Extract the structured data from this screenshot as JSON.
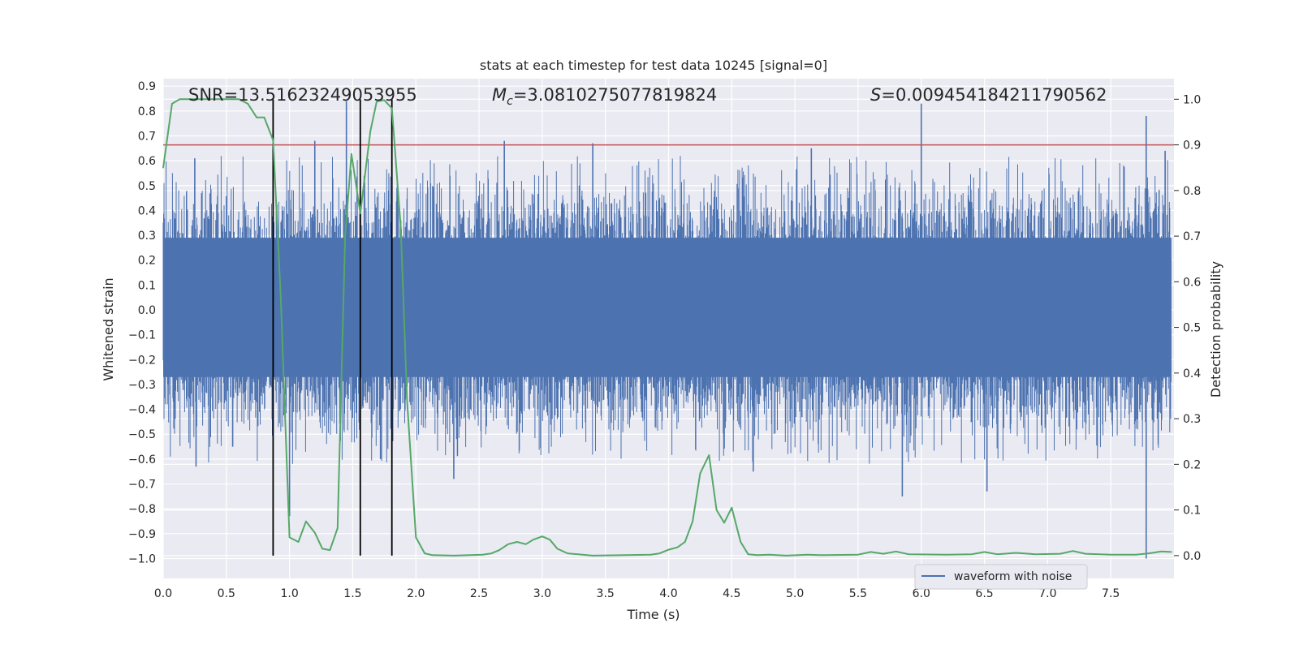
{
  "chart_data": {
    "type": "line",
    "title": "stats at each timestep for test data 10245 [signal=0]",
    "xlabel": "Time (s)",
    "ylabel": "Whitened strain",
    "ylabel_right": "Detection probability",
    "xlim": [
      0.0,
      8.0
    ],
    "ylim": [
      -1.08,
      0.93
    ],
    "ylim_right": [
      -0.05,
      1.045
    ],
    "x_ticks": [
      "0.0",
      "0.5",
      "1.0",
      "1.5",
      "2.0",
      "2.5",
      "3.0",
      "3.5",
      "4.0",
      "4.5",
      "5.0",
      "5.5",
      "6.0",
      "6.5",
      "7.0",
      "7.5"
    ],
    "y_ticks": [
      "0.9",
      "0.8",
      "0.7",
      "0.6",
      "0.5",
      "0.4",
      "0.3",
      "0.2",
      "0.1",
      "0.0",
      "-0.1",
      "-0.2",
      "-0.3",
      "-0.4",
      "-0.5",
      "-0.6",
      "-0.7",
      "-0.8",
      "-0.9",
      "-1.0"
    ],
    "y_ticks_right": [
      "1.0",
      "0.9",
      "0.8",
      "0.7",
      "0.6",
      "0.5",
      "0.4",
      "0.3",
      "0.2",
      "0.1",
      "0.0"
    ],
    "annotations": {
      "snr": "SNR=13.51623249053955",
      "mc_symbol": "M",
      "mc_sub": "c",
      "mc_value": "=3.0810275077819824",
      "s_symbol": "S",
      "s_value": "=0.009454184211790562"
    },
    "legend": {
      "label": "waveform with noise",
      "location": "lower right"
    },
    "threshold_right": 0.9,
    "vertical_lines_x": [
      0.87,
      1.56,
      1.81
    ],
    "series": [
      {
        "name": "waveform with noise",
        "axis": "left",
        "color": "#4c72b0",
        "style": "dense noise band",
        "envelope": {
          "core_low": -0.27,
          "core_high": 0.29,
          "typical_peak": 0.55,
          "typical_trough": -0.55
        },
        "extreme_spikes": [
          {
            "x": 0.25,
            "y": 0.61
          },
          {
            "x": 0.26,
            "y": -0.63
          },
          {
            "x": 0.55,
            "y": -0.55
          },
          {
            "x": 1.0,
            "y": -0.83
          },
          {
            "x": 1.2,
            "y": 0.68
          },
          {
            "x": 1.45,
            "y": 0.84
          },
          {
            "x": 1.72,
            "y": -0.6
          },
          {
            "x": 2.3,
            "y": -0.68
          },
          {
            "x": 2.7,
            "y": 0.68
          },
          {
            "x": 3.4,
            "y": 0.67
          },
          {
            "x": 4.67,
            "y": -0.65
          },
          {
            "x": 5.13,
            "y": 0.65
          },
          {
            "x": 6.0,
            "y": 0.83
          },
          {
            "x": 5.85,
            "y": -0.75
          },
          {
            "x": 6.52,
            "y": -0.73
          },
          {
            "x": 7.78,
            "y": 0.78
          },
          {
            "x": 7.78,
            "y": -1.0
          },
          {
            "x": 7.93,
            "y": 0.64
          }
        ]
      },
      {
        "name": "detection probability",
        "axis": "right",
        "color": "#55a868",
        "points": [
          [
            0.0,
            0.85
          ],
          [
            0.07,
            0.99
          ],
          [
            0.13,
            1.0
          ],
          [
            0.2,
            1.0
          ],
          [
            0.33,
            1.0
          ],
          [
            0.46,
            1.0
          ],
          [
            0.6,
            1.0
          ],
          [
            0.67,
            0.99
          ],
          [
            0.74,
            0.96
          ],
          [
            0.8,
            0.96
          ],
          [
            0.87,
            0.91
          ],
          [
            0.93,
            0.57
          ],
          [
            1.0,
            0.04
          ],
          [
            1.07,
            0.03
          ],
          [
            1.13,
            0.075
          ],
          [
            1.2,
            0.05
          ],
          [
            1.26,
            0.015
          ],
          [
            1.32,
            0.012
          ],
          [
            1.38,
            0.06
          ],
          [
            1.44,
            0.7
          ],
          [
            1.49,
            0.88
          ],
          [
            1.56,
            0.75
          ],
          [
            1.6,
            0.84
          ],
          [
            1.64,
            0.93
          ],
          [
            1.69,
            0.995
          ],
          [
            1.75,
            0.998
          ],
          [
            1.81,
            0.98
          ],
          [
            1.88,
            0.72
          ],
          [
            1.93,
            0.34
          ],
          [
            2.0,
            0.04
          ],
          [
            2.07,
            0.005
          ],
          [
            2.13,
            0.001
          ],
          [
            2.3,
            0.0
          ],
          [
            2.53,
            0.002
          ],
          [
            2.6,
            0.005
          ],
          [
            2.66,
            0.012
          ],
          [
            2.73,
            0.025
          ],
          [
            2.8,
            0.03
          ],
          [
            2.87,
            0.025
          ],
          [
            2.93,
            0.035
          ],
          [
            3.0,
            0.042
          ],
          [
            3.06,
            0.035
          ],
          [
            3.12,
            0.015
          ],
          [
            3.2,
            0.005
          ],
          [
            3.4,
            0.0
          ],
          [
            3.86,
            0.002
          ],
          [
            3.93,
            0.005
          ],
          [
            4.0,
            0.013
          ],
          [
            4.07,
            0.018
          ],
          [
            4.13,
            0.03
          ],
          [
            4.19,
            0.075
          ],
          [
            4.25,
            0.18
          ],
          [
            4.32,
            0.22
          ],
          [
            4.38,
            0.1
          ],
          [
            4.44,
            0.072
          ],
          [
            4.5,
            0.105
          ],
          [
            4.57,
            0.03
          ],
          [
            4.63,
            0.003
          ],
          [
            4.7,
            0.001
          ],
          [
            4.8,
            0.002
          ],
          [
            4.93,
            0.0
          ],
          [
            5.1,
            0.002
          ],
          [
            5.2,
            0.001
          ],
          [
            5.5,
            0.002
          ],
          [
            5.6,
            0.008
          ],
          [
            5.7,
            0.004
          ],
          [
            5.8,
            0.009
          ],
          [
            5.9,
            0.003
          ],
          [
            6.2,
            0.002
          ],
          [
            6.4,
            0.003
          ],
          [
            6.5,
            0.008
          ],
          [
            6.6,
            0.003
          ],
          [
            6.75,
            0.006
          ],
          [
            6.9,
            0.003
          ],
          [
            7.1,
            0.004
          ],
          [
            7.2,
            0.01
          ],
          [
            7.3,
            0.004
          ],
          [
            7.5,
            0.002
          ],
          [
            7.7,
            0.002
          ],
          [
            7.8,
            0.005
          ],
          [
            7.9,
            0.009
          ],
          [
            7.98,
            0.008
          ]
        ]
      }
    ],
    "threshold_color": "#c44e52",
    "vline_color": "#000000",
    "background_color": "#eaeaf2",
    "grid": true
  }
}
